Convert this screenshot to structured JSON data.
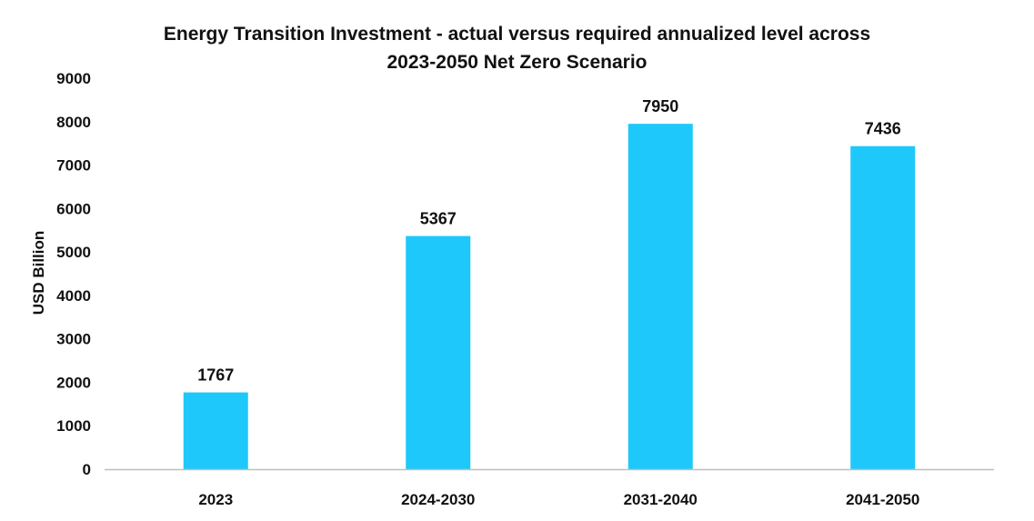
{
  "chart_data": {
    "type": "bar",
    "title_line1": "Energy Transition Investment - actual versus required annualized level across",
    "title_line2": "2023-2050 Net Zero Scenario",
    "xlabel": "",
    "ylabel": "USD Billion",
    "categories": [
      "2023",
      "2024-2030",
      "2031-2040",
      "2041-2050"
    ],
    "values": [
      1767,
      5367,
      7950,
      7436
    ],
    "ylim": [
      0,
      9000
    ],
    "yticks": [
      0,
      1000,
      2000,
      3000,
      4000,
      5000,
      6000,
      7000,
      8000,
      9000
    ],
    "bar_color": "#1EC8FA",
    "axis_color": "#BFBFBF",
    "grid": false,
    "legend": "none",
    "data_labels": [
      "1767",
      "5367",
      "7950",
      "7436"
    ]
  }
}
